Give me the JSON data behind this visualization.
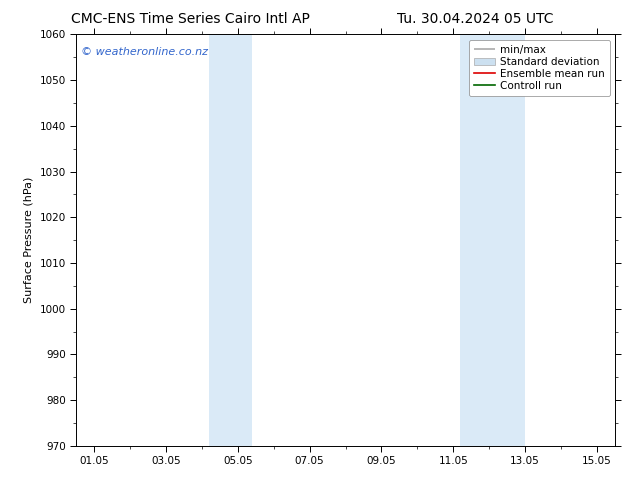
{
  "title_left": "CMC-ENS Time Series Cairo Intl AP",
  "title_right": "Tu. 30.04.2024 05 UTC",
  "ylabel": "Surface Pressure (hPa)",
  "ylim": [
    970,
    1060
  ],
  "yticks": [
    970,
    980,
    990,
    1000,
    1010,
    1020,
    1030,
    1040,
    1050,
    1060
  ],
  "xlim": [
    0.5,
    15.5
  ],
  "xtick_labels": [
    "01.05",
    "03.05",
    "05.05",
    "07.05",
    "09.05",
    "11.05",
    "13.05",
    "15.05"
  ],
  "xtick_positions": [
    1,
    3,
    5,
    7,
    9,
    11,
    13,
    15
  ],
  "shaded_bands": [
    {
      "x_start": 4.2,
      "x_end": 5.4
    },
    {
      "x_start": 11.2,
      "x_end": 13.0
    }
  ],
  "shade_color": "#daeaf7",
  "watermark_text": "© weatheronline.co.nz",
  "watermark_color": "#3366cc",
  "legend_items": [
    {
      "label": "min/max",
      "color": "#aaaaaa",
      "lw": 1.2
    },
    {
      "label": "Standard deviation",
      "color": "#cce0f0",
      "lw": 6
    },
    {
      "label": "Ensemble mean run",
      "color": "#dd0000",
      "lw": 1.2
    },
    {
      "label": "Controll run",
      "color": "#006600",
      "lw": 1.2
    }
  ],
  "bg_color": "#ffffff",
  "spine_color": "#000000",
  "tick_color": "#000000",
  "title_fontsize": 10,
  "ylabel_fontsize": 8,
  "tick_fontsize": 7.5,
  "watermark_fontsize": 8,
  "legend_fontsize": 7.5
}
